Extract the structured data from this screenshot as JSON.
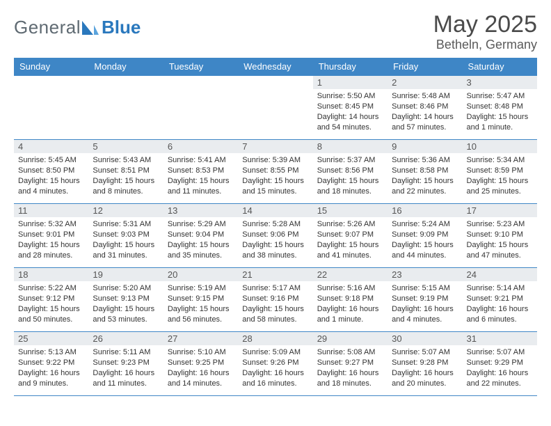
{
  "brand": {
    "part1": "General",
    "part2": "Blue"
  },
  "title": "May 2025",
  "location": "Betheln, Germany",
  "colors": {
    "header_blue": "#3e86c6",
    "date_bg": "#e9ecef",
    "text": "#333333"
  },
  "weekdays": [
    "Sunday",
    "Monday",
    "Tuesday",
    "Wednesday",
    "Thursday",
    "Friday",
    "Saturday"
  ],
  "weeks": [
    [
      {
        "blank": true
      },
      {
        "blank": true
      },
      {
        "blank": true
      },
      {
        "blank": true
      },
      {
        "date": "1",
        "sunrise": "5:50 AM",
        "sunset": "8:45 PM",
        "daylight": "14 hours and 54 minutes."
      },
      {
        "date": "2",
        "sunrise": "5:48 AM",
        "sunset": "8:46 PM",
        "daylight": "14 hours and 57 minutes."
      },
      {
        "date": "3",
        "sunrise": "5:47 AM",
        "sunset": "8:48 PM",
        "daylight": "15 hours and 1 minute."
      }
    ],
    [
      {
        "date": "4",
        "sunrise": "5:45 AM",
        "sunset": "8:50 PM",
        "daylight": "15 hours and 4 minutes."
      },
      {
        "date": "5",
        "sunrise": "5:43 AM",
        "sunset": "8:51 PM",
        "daylight": "15 hours and 8 minutes."
      },
      {
        "date": "6",
        "sunrise": "5:41 AM",
        "sunset": "8:53 PM",
        "daylight": "15 hours and 11 minutes."
      },
      {
        "date": "7",
        "sunrise": "5:39 AM",
        "sunset": "8:55 PM",
        "daylight": "15 hours and 15 minutes."
      },
      {
        "date": "8",
        "sunrise": "5:37 AM",
        "sunset": "8:56 PM",
        "daylight": "15 hours and 18 minutes."
      },
      {
        "date": "9",
        "sunrise": "5:36 AM",
        "sunset": "8:58 PM",
        "daylight": "15 hours and 22 minutes."
      },
      {
        "date": "10",
        "sunrise": "5:34 AM",
        "sunset": "8:59 PM",
        "daylight": "15 hours and 25 minutes."
      }
    ],
    [
      {
        "date": "11",
        "sunrise": "5:32 AM",
        "sunset": "9:01 PM",
        "daylight": "15 hours and 28 minutes."
      },
      {
        "date": "12",
        "sunrise": "5:31 AM",
        "sunset": "9:03 PM",
        "daylight": "15 hours and 31 minutes."
      },
      {
        "date": "13",
        "sunrise": "5:29 AM",
        "sunset": "9:04 PM",
        "daylight": "15 hours and 35 minutes."
      },
      {
        "date": "14",
        "sunrise": "5:28 AM",
        "sunset": "9:06 PM",
        "daylight": "15 hours and 38 minutes."
      },
      {
        "date": "15",
        "sunrise": "5:26 AM",
        "sunset": "9:07 PM",
        "daylight": "15 hours and 41 minutes."
      },
      {
        "date": "16",
        "sunrise": "5:24 AM",
        "sunset": "9:09 PM",
        "daylight": "15 hours and 44 minutes."
      },
      {
        "date": "17",
        "sunrise": "5:23 AM",
        "sunset": "9:10 PM",
        "daylight": "15 hours and 47 minutes."
      }
    ],
    [
      {
        "date": "18",
        "sunrise": "5:22 AM",
        "sunset": "9:12 PM",
        "daylight": "15 hours and 50 minutes."
      },
      {
        "date": "19",
        "sunrise": "5:20 AM",
        "sunset": "9:13 PM",
        "daylight": "15 hours and 53 minutes."
      },
      {
        "date": "20",
        "sunrise": "5:19 AM",
        "sunset": "9:15 PM",
        "daylight": "15 hours and 56 minutes."
      },
      {
        "date": "21",
        "sunrise": "5:17 AM",
        "sunset": "9:16 PM",
        "daylight": "15 hours and 58 minutes."
      },
      {
        "date": "22",
        "sunrise": "5:16 AM",
        "sunset": "9:18 PM",
        "daylight": "16 hours and 1 minute."
      },
      {
        "date": "23",
        "sunrise": "5:15 AM",
        "sunset": "9:19 PM",
        "daylight": "16 hours and 4 minutes."
      },
      {
        "date": "24",
        "sunrise": "5:14 AM",
        "sunset": "9:21 PM",
        "daylight": "16 hours and 6 minutes."
      }
    ],
    [
      {
        "date": "25",
        "sunrise": "5:13 AM",
        "sunset": "9:22 PM",
        "daylight": "16 hours and 9 minutes."
      },
      {
        "date": "26",
        "sunrise": "5:11 AM",
        "sunset": "9:23 PM",
        "daylight": "16 hours and 11 minutes."
      },
      {
        "date": "27",
        "sunrise": "5:10 AM",
        "sunset": "9:25 PM",
        "daylight": "16 hours and 14 minutes."
      },
      {
        "date": "28",
        "sunrise": "5:09 AM",
        "sunset": "9:26 PM",
        "daylight": "16 hours and 16 minutes."
      },
      {
        "date": "29",
        "sunrise": "5:08 AM",
        "sunset": "9:27 PM",
        "daylight": "16 hours and 18 minutes."
      },
      {
        "date": "30",
        "sunrise": "5:07 AM",
        "sunset": "9:28 PM",
        "daylight": "16 hours and 20 minutes."
      },
      {
        "date": "31",
        "sunrise": "5:07 AM",
        "sunset": "9:29 PM",
        "daylight": "16 hours and 22 minutes."
      }
    ]
  ],
  "labels": {
    "sunrise": "Sunrise: ",
    "sunset": "Sunset: ",
    "daylight": "Daylight: "
  }
}
